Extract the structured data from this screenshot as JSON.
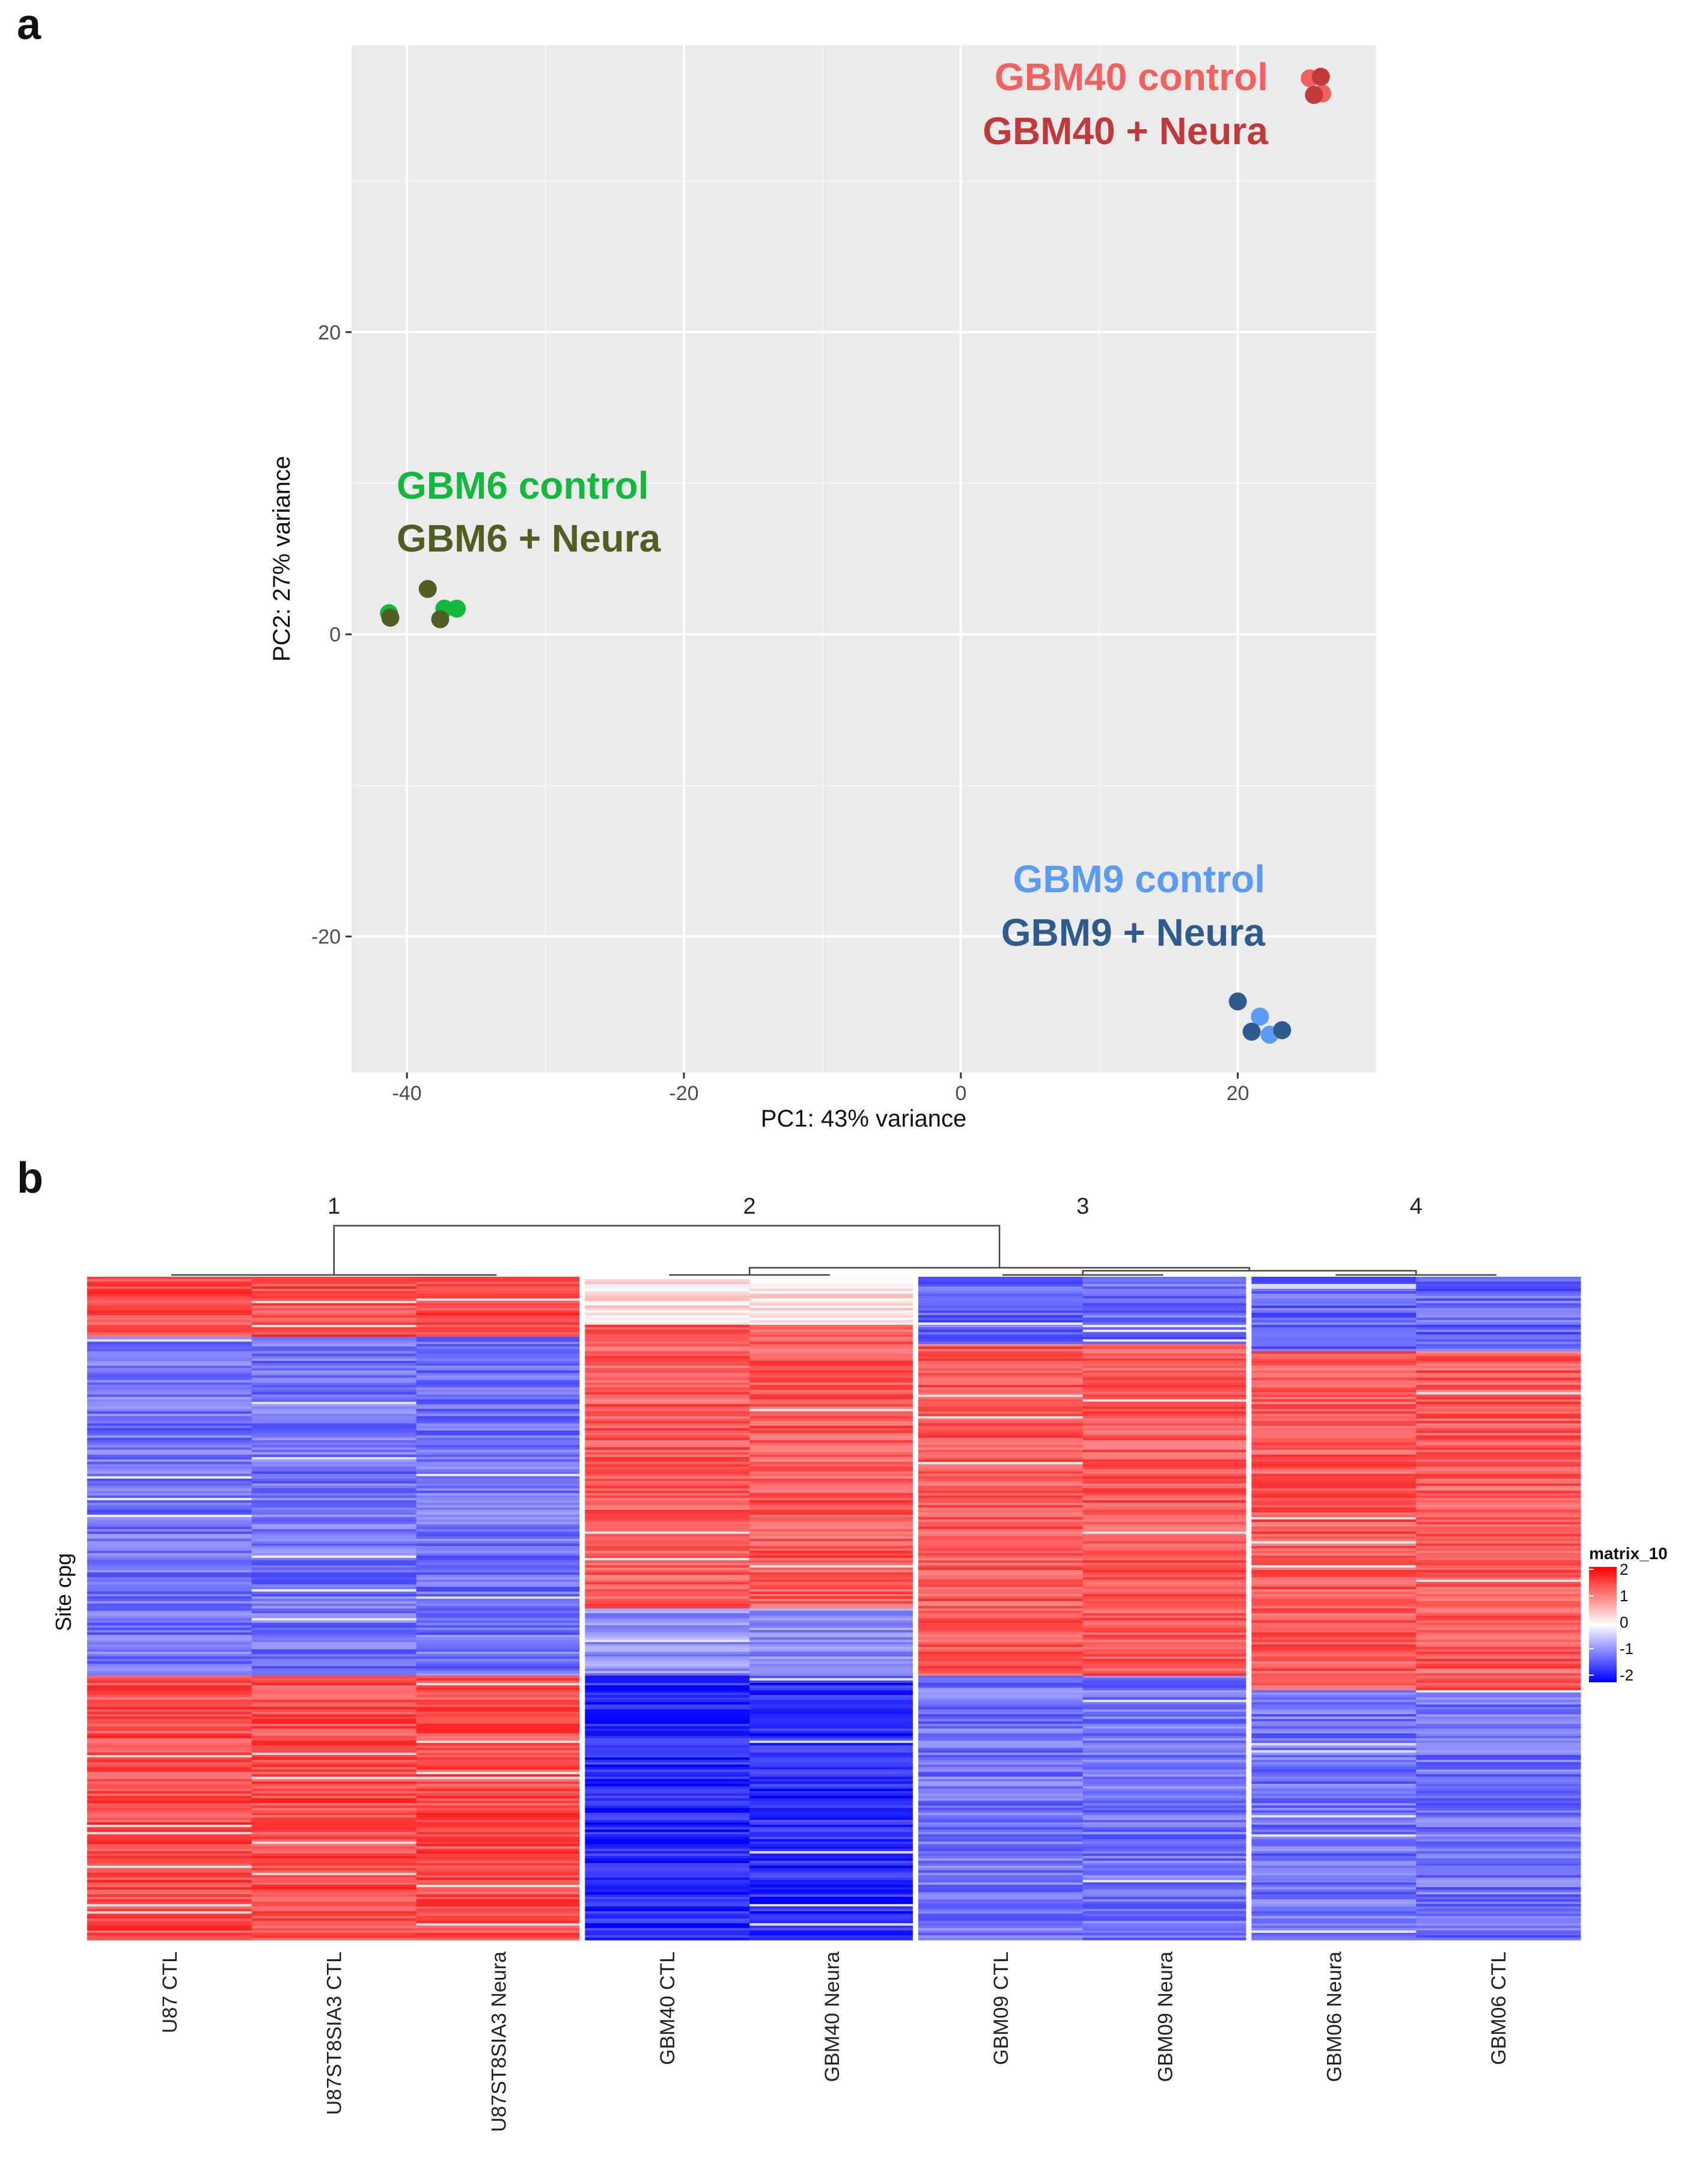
{
  "panel_a_label": "a",
  "panel_b_label": "b",
  "chart_data": [
    {
      "type": "scatter",
      "panel": "a",
      "xlabel": "PC1: 43% variance",
      "ylabel": "PC2: 27% variance",
      "xlim": [
        -44,
        30
      ],
      "ylim": [
        -29,
        39
      ],
      "xticks": [
        -40,
        -20,
        0,
        20
      ],
      "yticks": [
        -20,
        0,
        20
      ],
      "grid": true,
      "background": "#ebebeb",
      "series": [
        {
          "name": "GBM40 control",
          "color": "#f0615f",
          "points": [
            [
              25.2,
              36.8
            ],
            [
              26.1,
              35.8
            ]
          ]
        },
        {
          "name": "GBM40 + Neura",
          "color": "#c0393b",
          "points": [
            [
              26.0,
              36.9
            ],
            [
              25.5,
              35.7
            ]
          ]
        },
        {
          "name": "GBM6 control",
          "color": "#13b83c",
          "points": [
            [
              -41.3,
              1.4
            ],
            [
              -37.3,
              1.7
            ],
            [
              -36.4,
              1.7
            ]
          ]
        },
        {
          "name": "GBM6 + Neura",
          "color": "#4f5f24",
          "points": [
            [
              -38.5,
              3.0
            ],
            [
              -37.6,
              1.0
            ],
            [
              -41.2,
              1.1
            ]
          ]
        },
        {
          "name": "GBM9 control",
          "color": "#5b9bf0",
          "points": [
            [
              21.6,
              -25.3
            ],
            [
              22.3,
              -26.5
            ]
          ]
        },
        {
          "name": "GBM9 + Neura",
          "color": "#2f5b8f",
          "points": [
            [
              20.0,
              -24.3
            ],
            [
              21.0,
              -26.3
            ],
            [
              23.2,
              -26.2
            ]
          ]
        }
      ],
      "annotations": [
        {
          "text": "GBM40 control",
          "color": "#f0615f"
        },
        {
          "text": "GBM40 + Neura",
          "color": "#c0393b"
        },
        {
          "text": "GBM6 control",
          "color": "#13b83c"
        },
        {
          "text": "GBM6 + Neura",
          "color": "#4f5f24"
        },
        {
          "text": "GBM9 control",
          "color": "#5b9bf0"
        },
        {
          "text": "GBM9 + Neura",
          "color": "#2f5b8f"
        }
      ]
    },
    {
      "type": "heatmap",
      "panel": "b",
      "ylabel": "Site cpg",
      "columns": [
        "U87 CTL",
        "U87ST8SIA3 CTL",
        "U87ST8SIA3 Neura",
        "GBM40 CTL",
        "GBM40 Neura",
        "GBM09 CTL",
        "GBM09 Neura",
        "GBM06 Neura",
        "GBM06 CTL"
      ],
      "clusters": [
        {
          "label": "1",
          "columns": [
            0,
            1,
            2
          ]
        },
        {
          "label": "2",
          "columns": [
            3,
            4
          ]
        },
        {
          "label": "3",
          "columns": [
            5,
            6
          ]
        },
        {
          "label": "4",
          "columns": [
            7,
            8
          ]
        }
      ],
      "legend": {
        "title": "matrix_10",
        "ticks": [
          "2",
          "1",
          "0",
          "-1",
          "-2"
        ],
        "range": [
          -2,
          2
        ],
        "colors": [
          "#0000ff",
          "#ffffff",
          "#ff0000"
        ]
      },
      "row_blocks_description": "per cluster, fraction of rows (top to bottom) with approximate value",
      "blocks": [
        [
          {
            "end": 0.09,
            "v": 1.4
          },
          {
            "end": 0.6,
            "v": -1.1
          },
          {
            "end": 1.0,
            "v": 1.4
          }
        ],
        [
          {
            "end": 0.07,
            "v": 0.2
          },
          {
            "end": 0.5,
            "v": 1.3
          },
          {
            "end": 0.6,
            "v": -0.9
          },
          {
            "end": 1.0,
            "v": -1.7
          }
        ],
        [
          {
            "end": 0.1,
            "v": -1.2
          },
          {
            "end": 0.6,
            "v": 1.3
          },
          {
            "end": 1.0,
            "v": -1.1
          }
        ],
        [
          {
            "end": 0.11,
            "v": -1.2
          },
          {
            "end": 0.62,
            "v": 1.3
          },
          {
            "end": 1.0,
            "v": -1.1
          }
        ]
      ]
    }
  ]
}
